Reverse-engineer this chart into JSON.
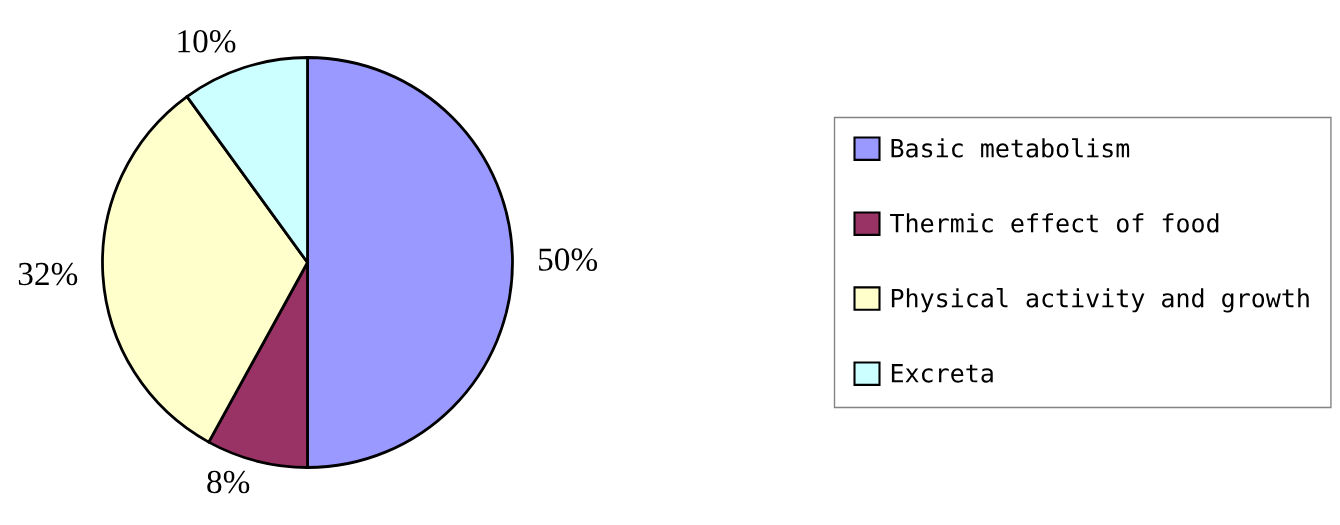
{
  "chart_data": {
    "type": "pie",
    "categories": [
      "Basic metabolism",
      "Thermic effect of food",
      "Physical activity and growth",
      "Excreta"
    ],
    "values": [
      50,
      8,
      32,
      10
    ],
    "colors": [
      "#9999ff",
      "#993366",
      "#ffffcc",
      "#ccffff"
    ],
    "value_labels": [
      "50%",
      "8%",
      "32%",
      "10%"
    ],
    "legend": "right"
  }
}
